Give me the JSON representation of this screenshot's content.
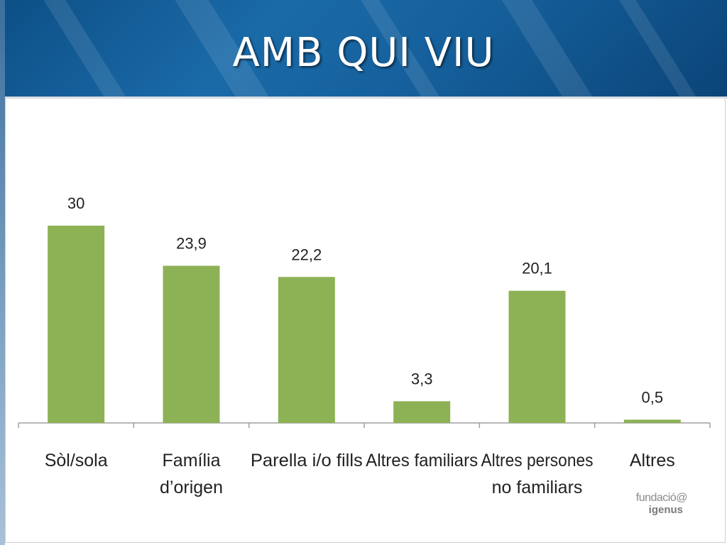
{
  "slide": {
    "title": "AMB QUI VIU"
  },
  "logo": {
    "line1": "fundació@",
    "line2": "igenus"
  },
  "colors": {
    "bar": "#8db255",
    "header": "#15609c",
    "axis": "#a0a0a0",
    "text": "#222222"
  },
  "chart_data": {
    "type": "bar",
    "categories": [
      [
        "Sòl/sola"
      ],
      [
        "Família",
        "d’origen"
      ],
      [
        "Parella i/o fills"
      ],
      [
        "Altres familiars"
      ],
      [
        "Altres persones",
        "no familiars"
      ],
      [
        "Altres"
      ]
    ],
    "values": [
      30,
      23.9,
      22.2,
      3.3,
      20.1,
      0.5
    ],
    "value_labels": [
      "30",
      "23,9",
      "22,2",
      "3,3",
      "20,1",
      "0,5"
    ],
    "title": "",
    "xlabel": "",
    "ylabel": "",
    "ylim": [
      0,
      30
    ],
    "grid": false,
    "legend": "none"
  }
}
